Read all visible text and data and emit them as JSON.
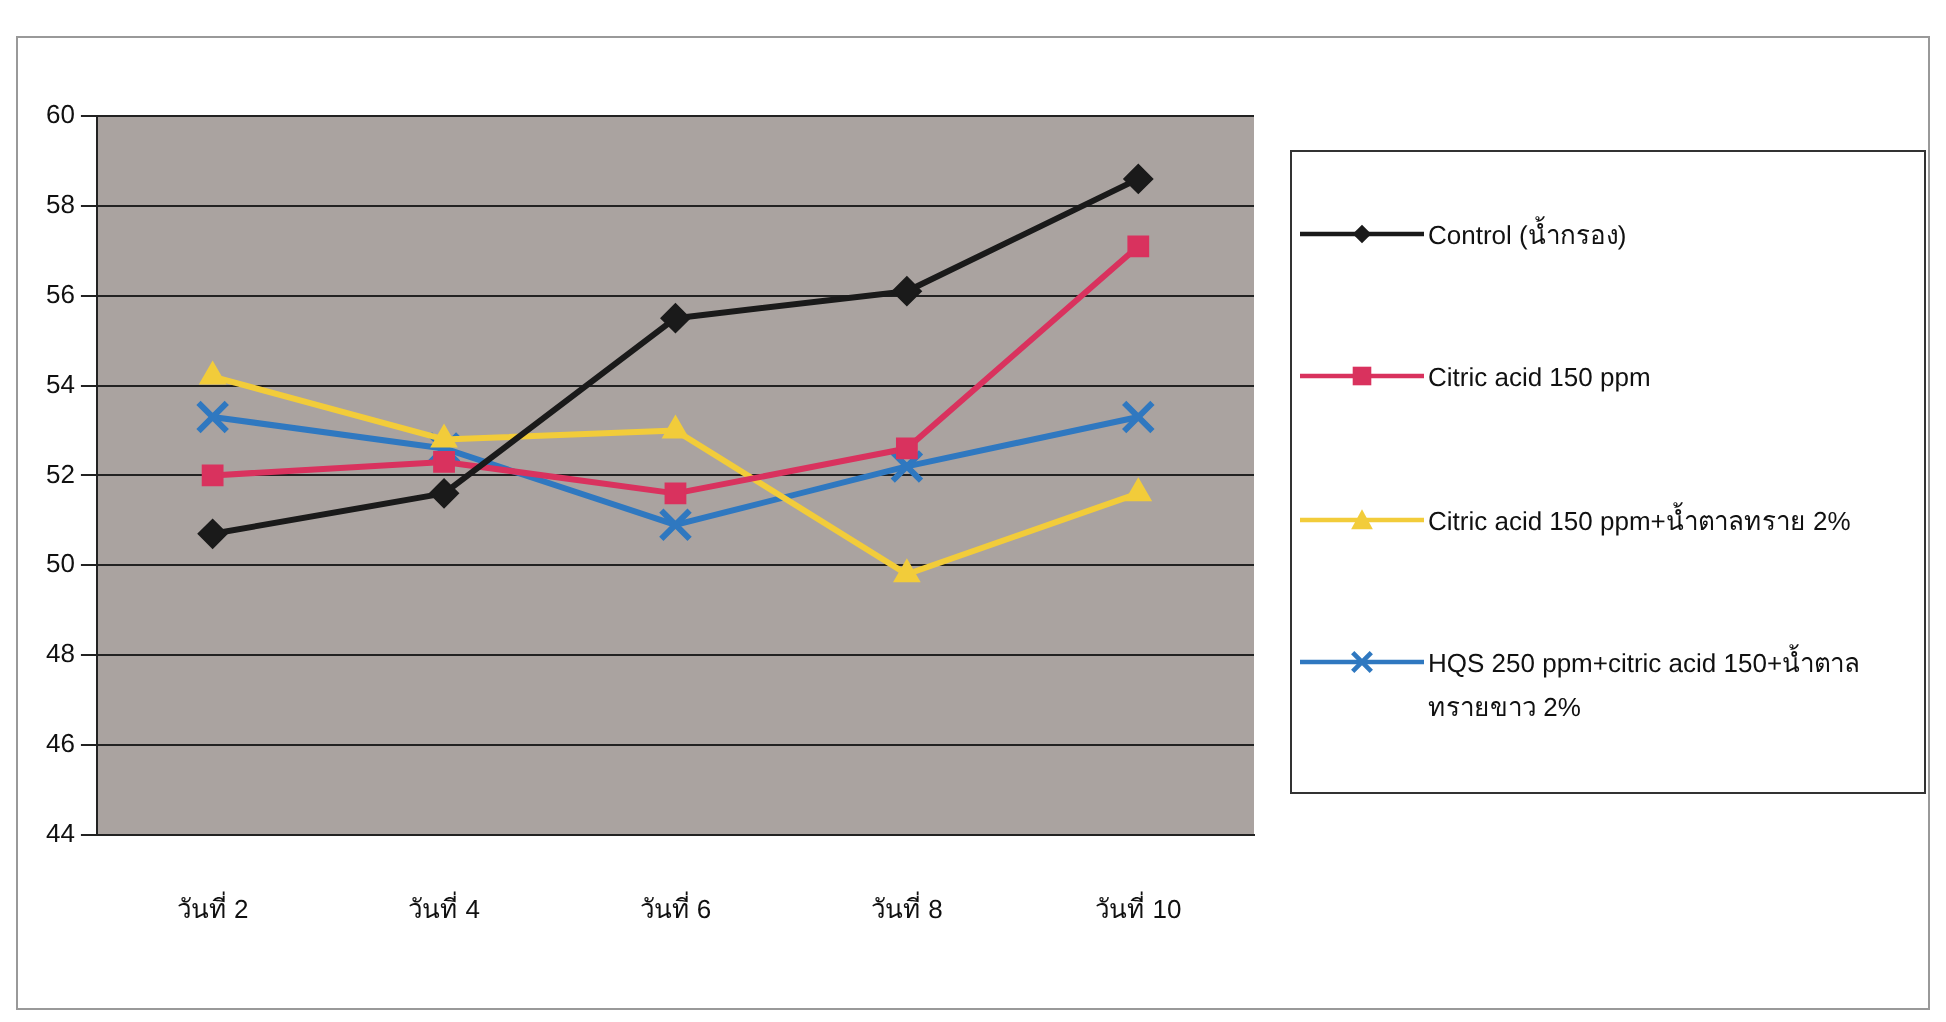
{
  "chart_data": {
    "type": "line",
    "categories": [
      "วันที่ 2",
      "วันที่ 4",
      "วันที่ 6",
      "วันที่ 8",
      "วันที่ 10"
    ],
    "series": [
      {
        "name": "Control (น้ำกรอง)",
        "color": "#1a1a1a",
        "marker": "diamond",
        "values": [
          50.7,
          51.6,
          55.5,
          56.1,
          58.6
        ]
      },
      {
        "name": "Citric acid 150 ppm",
        "color": "#d9325e",
        "marker": "square",
        "values": [
          52.0,
          52.3,
          51.6,
          52.6,
          57.1
        ]
      },
      {
        "name": "Citric acid 150 ppm+น้ำตาลทราย 2%",
        "color": "#f2cc3a",
        "marker": "triangle",
        "values": [
          54.2,
          52.8,
          53.0,
          49.8,
          51.6
        ]
      },
      {
        "name": "HQS 250 ppm+citric acid 150+น้ำตาลทรายขาว 2%",
        "color": "#2f78c0",
        "marker": "cross",
        "values": [
          53.3,
          52.6,
          50.9,
          52.2,
          53.3
        ]
      }
    ],
    "ylim": [
      44,
      60
    ],
    "yticks": [
      44,
      46,
      48,
      50,
      52,
      54,
      56,
      58,
      60
    ],
    "grid": "y",
    "legend": "right"
  }
}
